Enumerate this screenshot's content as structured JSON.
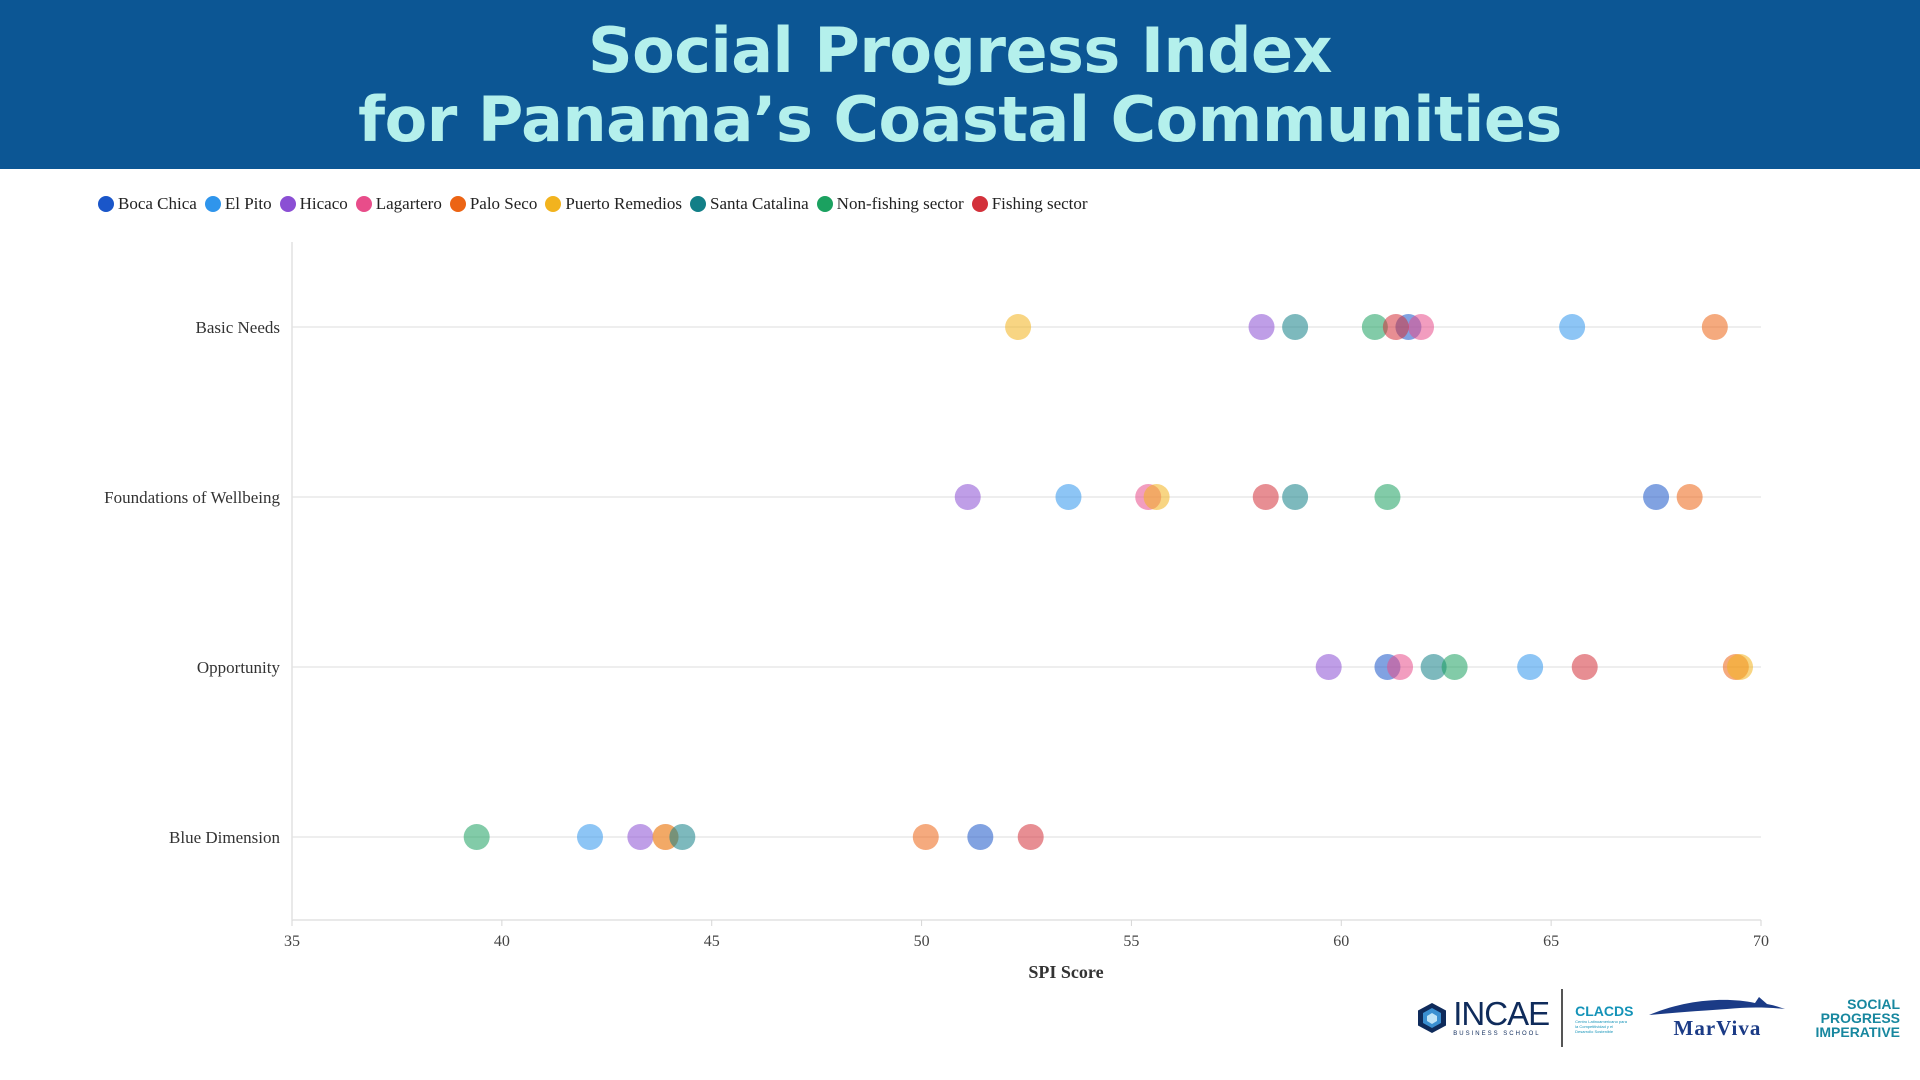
{
  "header": {
    "title_line1": "Social Progress Index",
    "title_line2": "for Panama’s Coastal Communities"
  },
  "colors": {
    "header_bg": "#0c5694",
    "title_text": "#b4f0ec"
  },
  "legend": [
    {
      "name": "Boca Chica",
      "color": "#1a56c9"
    },
    {
      "name": "El Pito",
      "color": "#2f95ec"
    },
    {
      "name": "Hicaco",
      "color": "#8b4fd4"
    },
    {
      "name": "Lagartero",
      "color": "#e84d8a"
    },
    {
      "name": "Palo Seco",
      "color": "#ec6414"
    },
    {
      "name": "Puerto Remedios",
      "color": "#f2b31e"
    },
    {
      "name": "Santa Catalina",
      "color": "#127f87"
    },
    {
      "name": "Non-fishing sector",
      "color": "#1ba160"
    },
    {
      "name": "Fishing sector",
      "color": "#d3313b"
    }
  ],
  "chart_data": {
    "type": "scatter",
    "title": "Social Progress Index for Panama’s Coastal Communities",
    "xlabel": "SPI Score",
    "ylabel": "",
    "xlim": [
      35,
      70
    ],
    "xticks": [
      35,
      40,
      45,
      50,
      55,
      60,
      65,
      70
    ],
    "categories": [
      "Basic Needs",
      "Foundations of Wellbeing",
      "Opportunity",
      "Blue Dimension"
    ],
    "grid": "horizontal",
    "legend_position": "top-left",
    "series": [
      {
        "name": "Boca Chica",
        "values": [
          61.6,
          67.5,
          61.1,
          51.4
        ]
      },
      {
        "name": "El Pito",
        "values": [
          65.5,
          53.5,
          64.5,
          42.1
        ]
      },
      {
        "name": "Hicaco",
        "values": [
          58.1,
          51.1,
          59.7,
          43.3
        ]
      },
      {
        "name": "Lagartero",
        "values": [
          61.9,
          55.4,
          61.4,
          43.9
        ]
      },
      {
        "name": "Palo Seco",
        "values": [
          68.9,
          68.3,
          69.4,
          50.1
        ]
      },
      {
        "name": "Puerto Remedios",
        "values": [
          52.3,
          55.6,
          69.5,
          43.9
        ]
      },
      {
        "name": "Santa Catalina",
        "values": [
          58.9,
          58.9,
          62.2,
          44.3
        ]
      },
      {
        "name": "Non-fishing sector",
        "values": [
          60.8,
          61.1,
          62.7,
          39.4
        ]
      },
      {
        "name": "Fishing sector",
        "values": [
          61.3,
          58.2,
          65.8,
          52.6
        ]
      }
    ]
  },
  "logos": {
    "incae_word": "INCAE",
    "incae_sub": "BUSINESS SCHOOL",
    "clacds_word": "CLACDS",
    "clacds_line": "Centro Latinoamericano para la Competitividad y el Desarrollo Sostenible",
    "marviva_word": "MarViva",
    "spi_line1": "SOCIAL",
    "spi_line2": "PROGRESS",
    "spi_line3": "IMPERATIVE"
  }
}
